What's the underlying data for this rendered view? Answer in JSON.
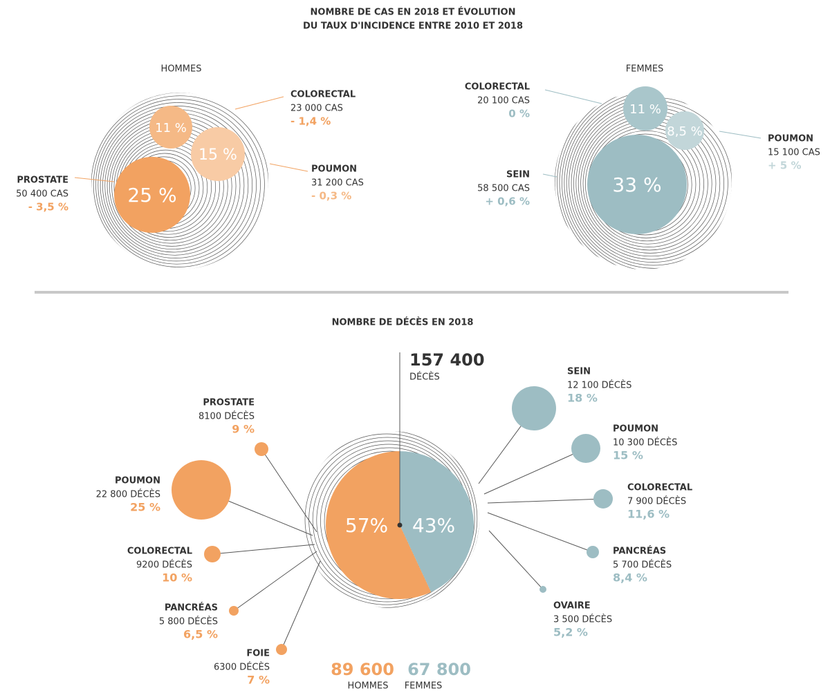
{
  "incidence": {
    "title": [
      "NOMBRE DE CAS EN 2018 ET ÉVOLUTION",
      "DU TAUX D'INCIDENCE ENTRE 2010 ET 2018"
    ],
    "hommes": {
      "label": "HOMMES",
      "items": [
        {
          "name": "COLORECTAL",
          "count": "23 000 CAS",
          "change": "- 1,4 %",
          "share": "11 %"
        },
        {
          "name": "PROSTATE",
          "count": "50 400 CAS",
          "change": "- 3,5 %",
          "share": "25 %"
        },
        {
          "name": "POUMON",
          "count": "31 200 CAS",
          "change": "- 0,3 %",
          "share": "15 %"
        }
      ]
    },
    "femmes": {
      "label": "FEMMES",
      "items": [
        {
          "name": "COLORECTAL",
          "count": "20 100 CAS",
          "change": "0 %",
          "share": "11 %"
        },
        {
          "name": "POUMON",
          "count": "15 100 CAS",
          "change": "+ 5 %",
          "share": "8,5 %"
        },
        {
          "name": "SEIN",
          "count": "58 500 CAS",
          "change": "+ 0,6 %",
          "share": "33 %"
        }
      ]
    }
  },
  "deces": {
    "title": "NOMBRE DE DÉCÈS EN 2018",
    "total": "157 400",
    "total_label": "DÉCÈS",
    "hommes_share": "57%",
    "femmes_share": "43%",
    "hommes_total": "89 600",
    "hommes_label": "HOMMES",
    "femmes_total": "67 800",
    "femmes_label": "FEMMES",
    "hommes": [
      {
        "name": "PROSTATE",
        "count": "8100 DÉCÈS",
        "share": "9 %"
      },
      {
        "name": "POUMON",
        "count": "22 800 DÉCÈS",
        "share": "25 %"
      },
      {
        "name": "COLORECTAL",
        "count": "9200 DÉCÈS",
        "share": "10 %"
      },
      {
        "name": "PANCRÉAS",
        "count": "5 800 DÉCÈS",
        "share": "6,5 %"
      },
      {
        "name": "FOIE",
        "count": "6300 DÉCÈS",
        "share": "7 %"
      }
    ],
    "femmes": [
      {
        "name": "SEIN",
        "count": "12 100 DÉCÈS",
        "share": "18 %"
      },
      {
        "name": "POUMON",
        "count": "10 300 DÉCÈS",
        "share": "15 %"
      },
      {
        "name": "COLORECTAL",
        "count": "7 900 DÉCÈS",
        "share": "11,6 %"
      },
      {
        "name": "PANCRÉAS",
        "count": "5 700 DÉCÈS",
        "share": "8,4 %"
      },
      {
        "name": "OVAIRE",
        "count": "3 500 DÉCÈS",
        "share": "5,2 %"
      }
    ]
  }
}
